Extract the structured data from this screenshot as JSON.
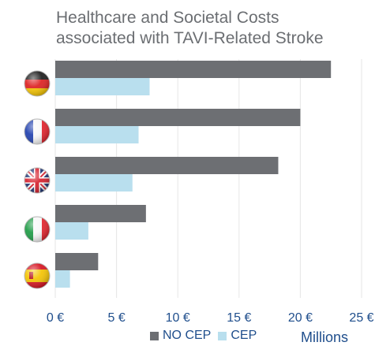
{
  "title_line1": "Healthcare and Societal Costs",
  "title_line2": "associated with TAVI-Related Stroke",
  "legend": {
    "no_cep": "NO CEP",
    "cep": "CEP"
  },
  "units_label": "Millions",
  "colors": {
    "no_cep": "#6d6f73",
    "cep": "#b9dfee",
    "text": "#1f4e8c",
    "title": "#6b6e72",
    "grid": "#e6e6e6"
  },
  "chart_data": {
    "type": "bar",
    "orientation": "horizontal",
    "categories": [
      "Germany",
      "France",
      "United Kingdom",
      "Italy",
      "Spain"
    ],
    "category_icons": [
      "germany-flag-icon",
      "france-flag-icon",
      "uk-flag-icon",
      "italy-flag-icon",
      "spain-flag-icon"
    ],
    "series": [
      {
        "name": "NO CEP",
        "values": [
          22.5,
          20.0,
          18.2,
          7.4,
          3.5
        ]
      },
      {
        "name": "CEP",
        "values": [
          7.7,
          6.8,
          6.3,
          2.7,
          1.2
        ]
      }
    ],
    "xlim": [
      0,
      25
    ],
    "xticks": [
      0,
      5,
      10,
      15,
      20,
      25
    ],
    "xtick_labels": [
      "0 €",
      "5 €",
      "10 €",
      "15 €",
      "20 €",
      "25 €"
    ],
    "xlabel": "Millions",
    "legend_position": "bottom",
    "grid": true
  }
}
